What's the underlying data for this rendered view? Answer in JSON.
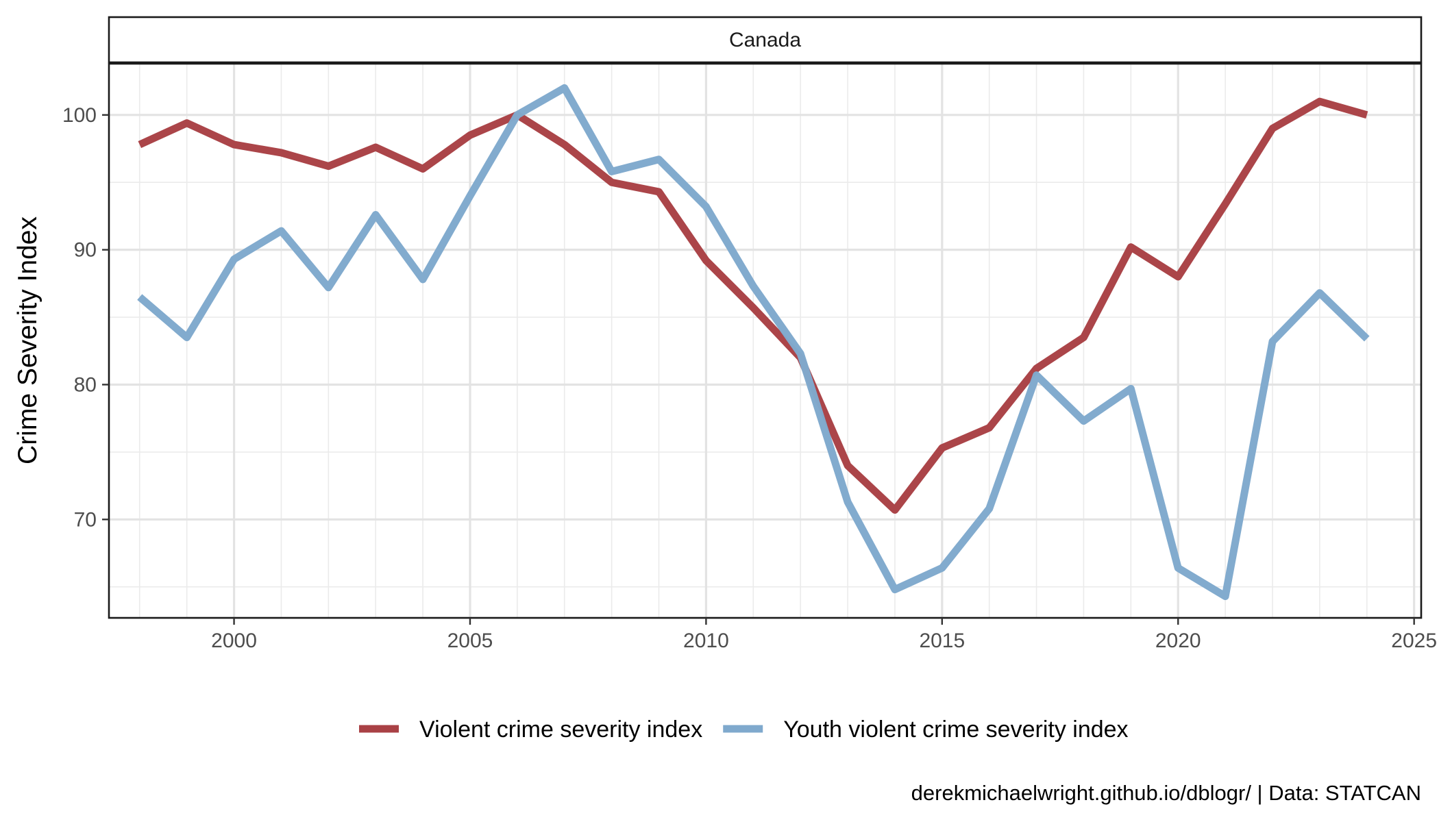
{
  "chart_data": {
    "type": "line",
    "facet": "Canada",
    "xlabel": "",
    "ylabel": "Crime Severity Index",
    "x_ticks": [
      2000,
      2005,
      2010,
      2015,
      2020,
      2025
    ],
    "y_ticks": [
      70,
      80,
      90,
      100
    ],
    "xlim": [
      1997.35,
      2025.15
    ],
    "ylim": [
      62.7,
      103.8
    ],
    "x": [
      1998,
      1999,
      2000,
      2001,
      2002,
      2003,
      2004,
      2005,
      2006,
      2007,
      2008,
      2009,
      2010,
      2011,
      2012,
      2013,
      2014,
      2015,
      2016,
      2017,
      2018,
      2019,
      2020,
      2021,
      2022,
      2023,
      2024
    ],
    "series": [
      {
        "name": "Violent crime severity index",
        "color": "#a94145",
        "values": [
          97.8,
          99.4,
          97.8,
          97.2,
          96.2,
          97.6,
          96.0,
          98.5,
          100.0,
          97.8,
          95.0,
          94.3,
          89.2,
          85.7,
          82.0,
          74.0,
          70.7,
          75.3,
          76.8,
          81.2,
          83.5,
          90.2,
          88.0,
          93.4,
          99.0,
          101.0,
          100.0
        ]
      },
      {
        "name": "Youth violent crime severity index",
        "color": "#7fa9cd",
        "values": [
          86.5,
          83.5,
          89.3,
          91.4,
          87.2,
          92.6,
          87.8,
          94.0,
          100.0,
          102.0,
          95.8,
          96.7,
          93.2,
          87.3,
          82.3,
          71.3,
          64.8,
          66.4,
          70.8,
          80.7,
          77.3,
          79.7,
          66.4,
          64.3,
          83.2,
          86.8,
          83.4
        ]
      }
    ],
    "grid": true,
    "legend_position": "bottom",
    "caption": "derekmichaelwright.github.io/dblogr/ | Data: STATCAN"
  }
}
